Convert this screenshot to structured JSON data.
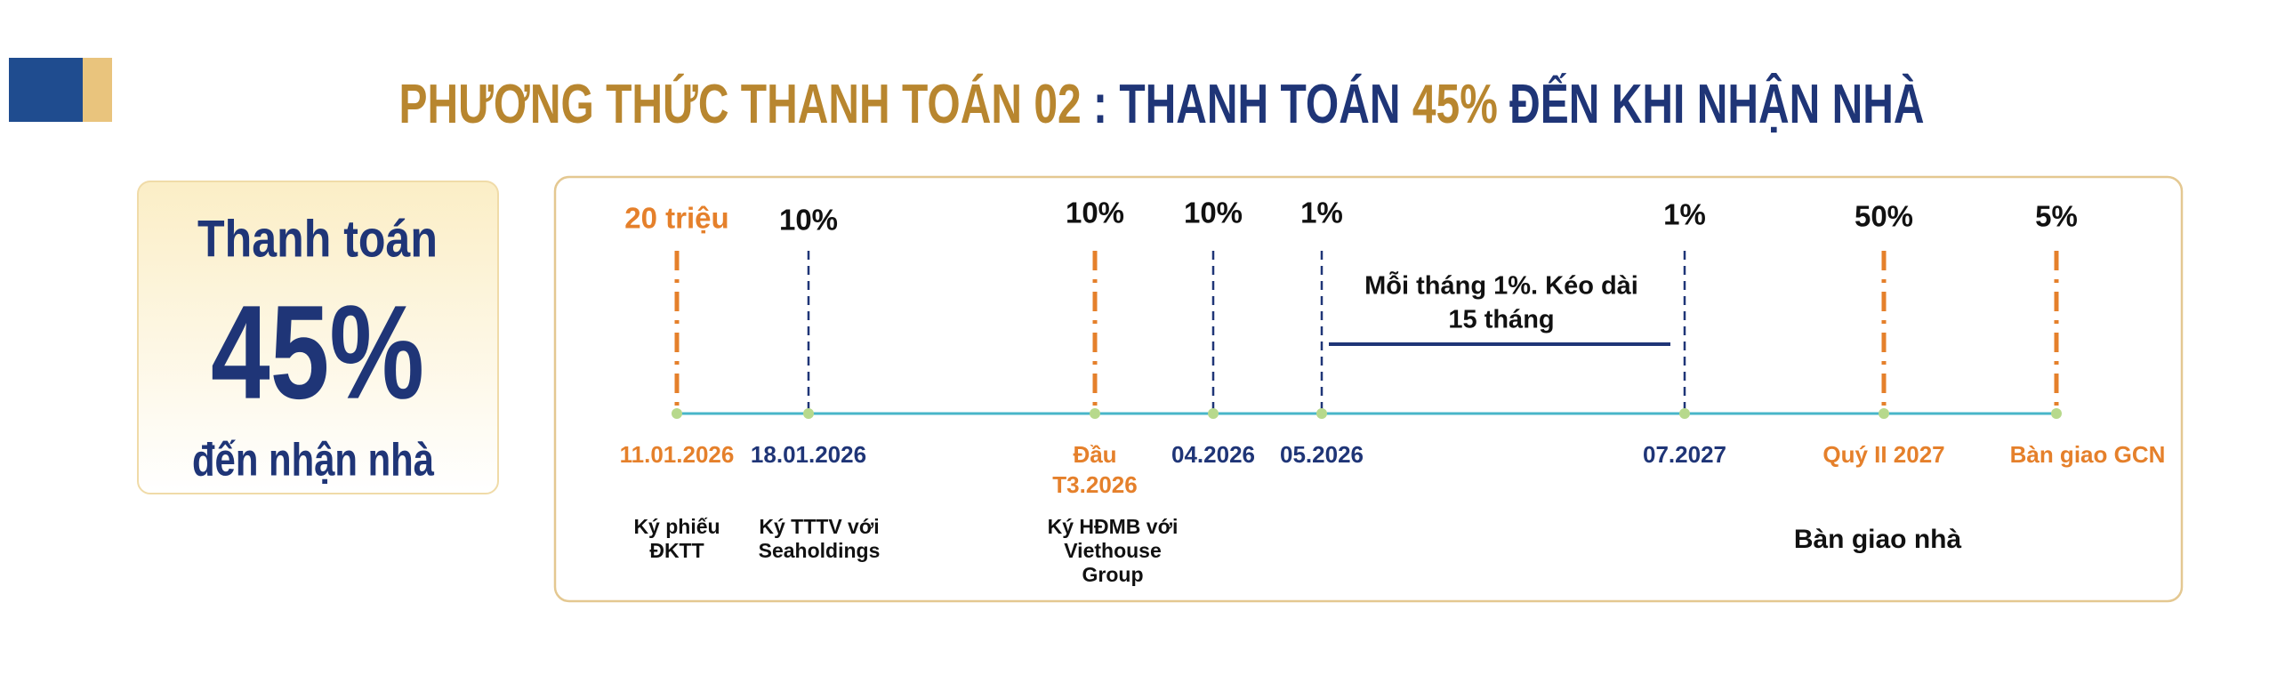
{
  "header": {
    "title_parts": [
      {
        "text": "PHƯƠNG THỨC THANH TOÁN 02",
        "color": "#b8862f"
      },
      {
        "text": " : THANH TOÁN ",
        "color": "#1f3577"
      },
      {
        "text": "45%",
        "color": "#b8862f"
      },
      {
        "text": " ĐẾN KHI NHẬN NHÀ",
        "color": "#1f3577"
      }
    ]
  },
  "summary": {
    "line1": "Thanh toán",
    "value": "45%",
    "line3": "đến nhận nhà"
  },
  "timeline": {
    "milestones": [
      {
        "amount": "20 triệu",
        "date": [
          "11.01.2026"
        ],
        "note": [
          "Ký phiếu",
          "ĐKTT"
        ],
        "color": "#e5802b"
      },
      {
        "amount": "10%",
        "date": [
          "18.01.2026"
        ],
        "note": [
          "Ký TTTV với",
          "Seaholdings"
        ],
        "color": "#1f3577"
      },
      {
        "amount": "10%",
        "date": [
          "Đầu",
          "T3.2026"
        ],
        "note": [
          "Ký HĐMB với",
          "Viethouse",
          "Group"
        ],
        "color": "#e5802b"
      },
      {
        "amount": "10%",
        "date": [
          "04.2026"
        ],
        "color": "#1f3577"
      },
      {
        "amount": "1%",
        "date": [
          "05.2026"
        ],
        "color": "#1f3577"
      },
      {
        "amount": "1%",
        "date": [
          "07.2027"
        ],
        "color": "#1f3577"
      },
      {
        "amount": "50%",
        "date": [
          "Quý II 2027"
        ],
        "color": "#e5802b"
      },
      {
        "amount": "5%",
        "date": [
          "Bàn giao GCN"
        ],
        "color": "#e5802b"
      }
    ],
    "period_note": [
      "Mỗi tháng 1%. Kéo dài",
      "15 tháng"
    ],
    "handover_note": "Bàn giao nhà"
  }
}
